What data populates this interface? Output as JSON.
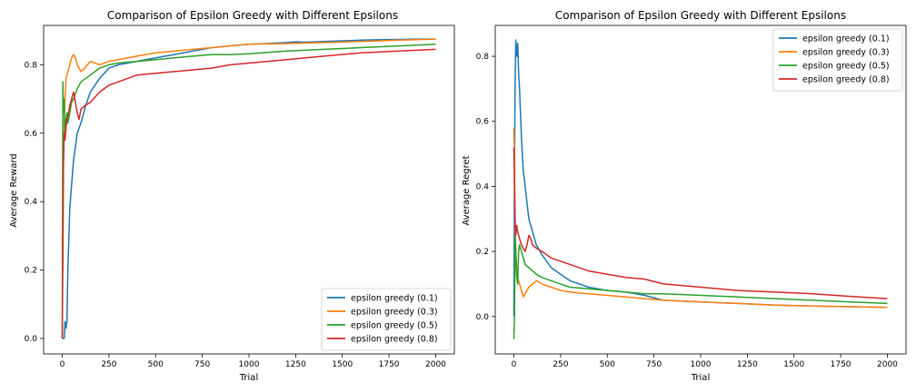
{
  "chart_data": [
    {
      "type": "line",
      "title": "Comparison of Epsilon Greedy with Different Epsilons",
      "xlabel": "Trial",
      "ylabel": "Average Reward",
      "xlim": [
        -100,
        2100
      ],
      "ylim": [
        -0.045,
        0.915
      ],
      "xticks": [
        0,
        250,
        500,
        750,
        1000,
        1250,
        1500,
        1750,
        2000
      ],
      "yticks": [
        0.0,
        0.2,
        0.4,
        0.6,
        0.8
      ],
      "ytick_labels": [
        "0.0",
        "0.2",
        "0.4",
        "0.6",
        "0.8"
      ],
      "grid": false,
      "legend_position": "lower-right",
      "series": [
        {
          "name": "epsilon greedy (0.1)",
          "color": "#1f77b4",
          "x": [
            0,
            5,
            10,
            15,
            20,
            25,
            30,
            40,
            50,
            60,
            80,
            100,
            125,
            150,
            200,
            250,
            300,
            400,
            500,
            600,
            700,
            800,
            900,
            1000,
            1100,
            1200,
            1250,
            1300,
            1400,
            1500,
            1600,
            1700,
            1800,
            1900,
            2000
          ],
          "y": [
            0.0,
            0.0,
            0.0,
            0.05,
            0.03,
            0.05,
            0.2,
            0.38,
            0.45,
            0.52,
            0.6,
            0.63,
            0.68,
            0.72,
            0.76,
            0.79,
            0.8,
            0.81,
            0.82,
            0.83,
            0.84,
            0.85,
            0.855,
            0.86,
            0.862,
            0.865,
            0.867,
            0.866,
            0.868,
            0.87,
            0.872,
            0.873,
            0.874,
            0.875,
            0.875
          ]
        },
        {
          "name": "epsilon greedy (0.3)",
          "color": "#ff7f0e",
          "x": [
            0,
            3,
            6,
            10,
            15,
            20,
            30,
            40,
            50,
            60,
            70,
            80,
            100,
            120,
            150,
            200,
            250,
            300,
            400,
            500,
            600,
            700,
            800,
            900,
            1000,
            1200,
            1400,
            1600,
            1800,
            2000
          ],
          "y": [
            0.3,
            0.2,
            0.55,
            0.62,
            0.7,
            0.76,
            0.78,
            0.8,
            0.82,
            0.83,
            0.82,
            0.8,
            0.78,
            0.79,
            0.81,
            0.8,
            0.81,
            0.815,
            0.825,
            0.835,
            0.84,
            0.845,
            0.85,
            0.855,
            0.86,
            0.862,
            0.865,
            0.868,
            0.872,
            0.875
          ]
        },
        {
          "name": "epsilon greedy (0.5)",
          "color": "#2ca02c",
          "x": [
            0,
            3,
            6,
            10,
            15,
            20,
            25,
            30,
            40,
            50,
            60,
            80,
            100,
            150,
            200,
            250,
            300,
            400,
            500,
            600,
            700,
            800,
            900,
            1000,
            1200,
            1400,
            1600,
            1800,
            2000
          ],
          "y": [
            0.0,
            0.75,
            0.66,
            0.7,
            0.6,
            0.64,
            0.66,
            0.63,
            0.66,
            0.69,
            0.7,
            0.73,
            0.75,
            0.77,
            0.79,
            0.8,
            0.805,
            0.81,
            0.815,
            0.82,
            0.825,
            0.83,
            0.83,
            0.832,
            0.84,
            0.845,
            0.85,
            0.855,
            0.86
          ]
        },
        {
          "name": "epsilon greedy (0.8)",
          "color": "#d62728",
          "x": [
            0,
            3,
            6,
            10,
            15,
            20,
            30,
            40,
            50,
            60,
            70,
            80,
            90,
            100,
            120,
            150,
            200,
            250,
            300,
            400,
            500,
            600,
            700,
            800,
            900,
            1000,
            1200,
            1400,
            1600,
            1800,
            2000
          ],
          "y": [
            0.0,
            0.25,
            0.5,
            0.6,
            0.58,
            0.62,
            0.65,
            0.68,
            0.7,
            0.72,
            0.69,
            0.66,
            0.64,
            0.67,
            0.68,
            0.69,
            0.72,
            0.74,
            0.75,
            0.77,
            0.775,
            0.78,
            0.785,
            0.79,
            0.8,
            0.805,
            0.815,
            0.825,
            0.835,
            0.84,
            0.845
          ]
        }
      ]
    },
    {
      "type": "line",
      "title": "Comparison of Epsilon Greedy with Different Epsilons",
      "xlabel": "Trial",
      "ylabel": "Average Regret",
      "xlim": [
        -100,
        2100
      ],
      "ylim": [
        -0.115,
        0.895
      ],
      "xticks": [
        0,
        250,
        500,
        750,
        1000,
        1250,
        1500,
        1750,
        2000
      ],
      "yticks": [
        0.0,
        0.2,
        0.4,
        0.6,
        0.8
      ],
      "ytick_labels": [
        "0.0",
        "0.2",
        "0.4",
        "0.6",
        "0.8"
      ],
      "grid": false,
      "legend_position": "top-right",
      "series": [
        {
          "name": "epsilon greedy (0.1)",
          "color": "#1f77b4",
          "x": [
            0,
            3,
            6,
            10,
            15,
            20,
            25,
            30,
            40,
            50,
            60,
            70,
            80,
            100,
            120,
            150,
            200,
            250,
            300,
            400,
            500,
            600,
            700,
            800,
            1000,
            1200,
            1400,
            1600,
            1800,
            2000
          ],
          "y": [
            0.0,
            0.45,
            0.7,
            0.85,
            0.8,
            0.84,
            0.75,
            0.7,
            0.55,
            0.45,
            0.4,
            0.35,
            0.3,
            0.26,
            0.22,
            0.19,
            0.15,
            0.13,
            0.11,
            0.09,
            0.08,
            0.075,
            0.065,
            0.05,
            0.045,
            0.04,
            0.035,
            0.032,
            0.03,
            0.028
          ]
        },
        {
          "name": "epsilon greedy (0.3)",
          "color": "#ff7f0e",
          "x": [
            0,
            3,
            6,
            10,
            15,
            20,
            30,
            40,
            50,
            60,
            70,
            80,
            100,
            120,
            150,
            200,
            250,
            300,
            400,
            500,
            600,
            700,
            800,
            1000,
            1200,
            1400,
            1600,
            1800,
            2000
          ],
          "y": [
            0.58,
            0.5,
            0.3,
            0.2,
            0.15,
            0.12,
            0.1,
            0.08,
            0.06,
            0.07,
            0.08,
            0.09,
            0.1,
            0.11,
            0.1,
            0.09,
            0.08,
            0.075,
            0.07,
            0.065,
            0.06,
            0.055,
            0.05,
            0.045,
            0.04,
            0.035,
            0.032,
            0.03,
            0.028
          ]
        },
        {
          "name": "epsilon greedy (0.5)",
          "color": "#2ca02c",
          "x": [
            0,
            3,
            6,
            10,
            15,
            20,
            25,
            30,
            40,
            50,
            60,
            80,
            100,
            120,
            150,
            200,
            250,
            300,
            400,
            500,
            600,
            700,
            800,
            1000,
            1200,
            1400,
            1600,
            1800,
            2000
          ],
          "y": [
            -0.07,
            0.0,
            0.25,
            0.2,
            0.12,
            0.1,
            0.2,
            0.22,
            0.2,
            0.18,
            0.16,
            0.15,
            0.14,
            0.13,
            0.12,
            0.11,
            0.1,
            0.09,
            0.085,
            0.08,
            0.075,
            0.07,
            0.07,
            0.065,
            0.06,
            0.055,
            0.05,
            0.045,
            0.04
          ]
        },
        {
          "name": "epsilon greedy (0.8)",
          "color": "#d62728",
          "x": [
            0,
            3,
            6,
            10,
            15,
            20,
            30,
            40,
            50,
            60,
            70,
            80,
            90,
            100,
            120,
            150,
            200,
            250,
            300,
            400,
            500,
            600,
            700,
            800,
            1000,
            1200,
            1400,
            1600,
            1800,
            2000
          ],
          "y": [
            0.52,
            0.4,
            0.3,
            0.25,
            0.28,
            0.26,
            0.24,
            0.22,
            0.21,
            0.2,
            0.22,
            0.25,
            0.24,
            0.22,
            0.21,
            0.2,
            0.18,
            0.17,
            0.16,
            0.14,
            0.13,
            0.12,
            0.115,
            0.1,
            0.09,
            0.08,
            0.075,
            0.07,
            0.062,
            0.055
          ]
        }
      ]
    }
  ]
}
